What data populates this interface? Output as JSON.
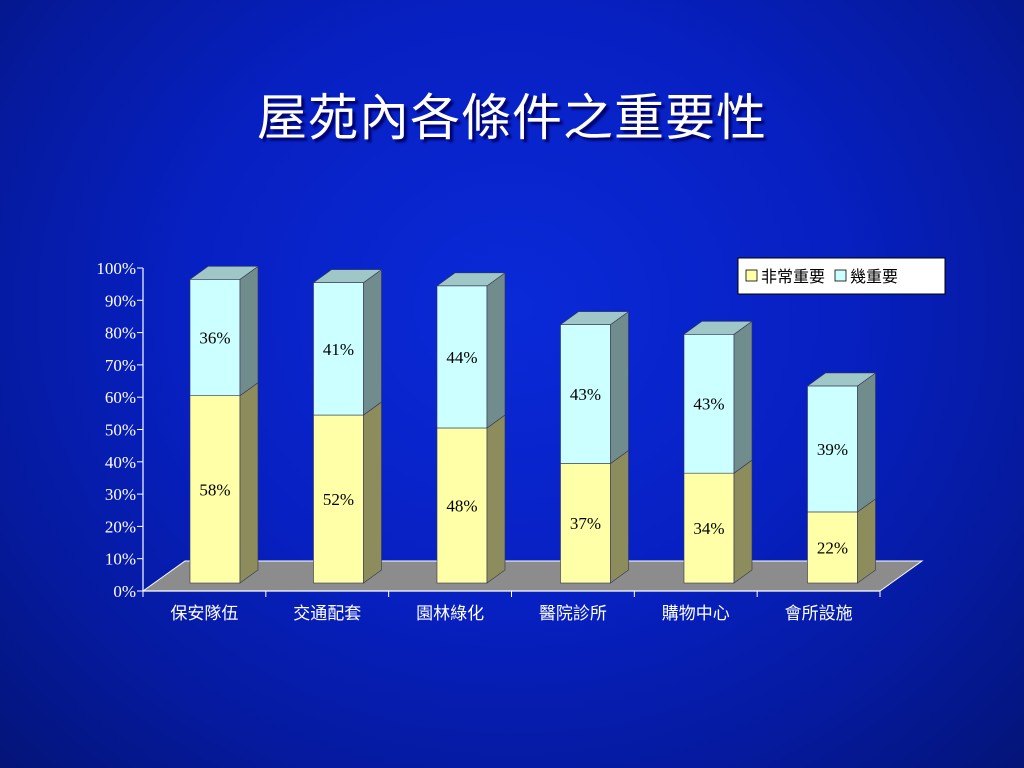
{
  "slide": {
    "title": "屋苑內各條件之重要性"
  },
  "chart_data": {
    "type": "bar",
    "stacked": true,
    "three_d": true,
    "title": "屋苑內各條件之重要性",
    "categories": [
      "保安隊伍",
      "交通配套",
      "園林綠化",
      "醫院診所",
      "購物中心",
      "會所設施"
    ],
    "series": [
      {
        "name": "非常重要",
        "values": [
          58,
          52,
          48,
          37,
          34,
          22
        ],
        "labels": [
          "58%",
          "52%",
          "48%",
          "37%",
          "34%",
          "22%"
        ],
        "color": "#ffffa8"
      },
      {
        "name": "幾重要",
        "values": [
          36,
          41,
          44,
          43,
          43,
          39
        ],
        "labels": [
          "36%",
          "41%",
          "44%",
          "43%",
          "43%",
          "39%"
        ],
        "color": "#ccffff"
      }
    ],
    "y_ticks": [
      "0%",
      "10%",
      "20%",
      "30%",
      "40%",
      "50%",
      "60%",
      "70%",
      "80%",
      "90%",
      "100%"
    ],
    "ylim": [
      0,
      100
    ],
    "legend_position": "top-right",
    "grid": false,
    "colors": {
      "floor": "#8c8c8c",
      "text": "#ffffff"
    }
  }
}
